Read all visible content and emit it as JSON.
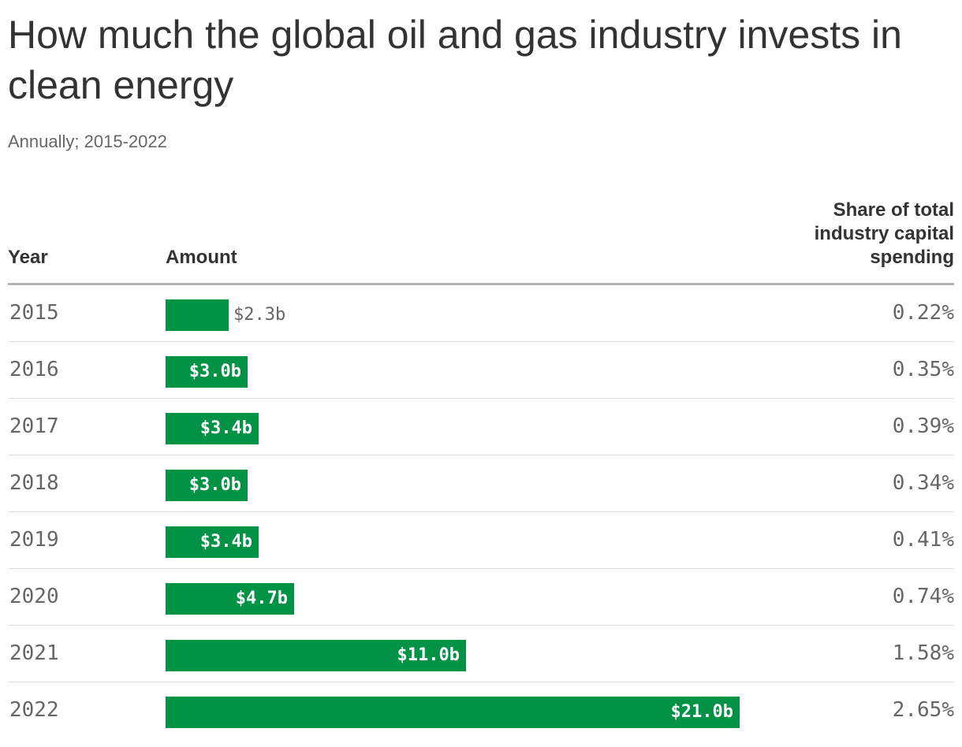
{
  "chart_data": {
    "type": "table",
    "title": "How much the global oil and gas industry invests in clean energy",
    "subtitle": "Annually; 2015-2022",
    "columns": {
      "year": "Year",
      "amount": "Amount",
      "share": "Share of total industry capital spending"
    },
    "amount_scale_max": 21.0,
    "bar_color": "#009245",
    "rows": [
      {
        "year": "2015",
        "amount": 2.3,
        "amount_label": "$2.3b",
        "share": "0.22%"
      },
      {
        "year": "2016",
        "amount": 3.0,
        "amount_label": "$3.0b",
        "share": "0.35%"
      },
      {
        "year": "2017",
        "amount": 3.4,
        "amount_label": "$3.4b",
        "share": "0.39%"
      },
      {
        "year": "2018",
        "amount": 3.0,
        "amount_label": "$3.0b",
        "share": "0.34%"
      },
      {
        "year": "2019",
        "amount": 3.4,
        "amount_label": "$3.4b",
        "share": "0.41%"
      },
      {
        "year": "2020",
        "amount": 4.7,
        "amount_label": "$4.7b",
        "share": "0.74%"
      },
      {
        "year": "2021",
        "amount": 11.0,
        "amount_label": "$11.0b",
        "share": "1.58%"
      },
      {
        "year": "2022",
        "amount": 21.0,
        "amount_label": "$21.0b",
        "share": "2.65%"
      }
    ]
  }
}
